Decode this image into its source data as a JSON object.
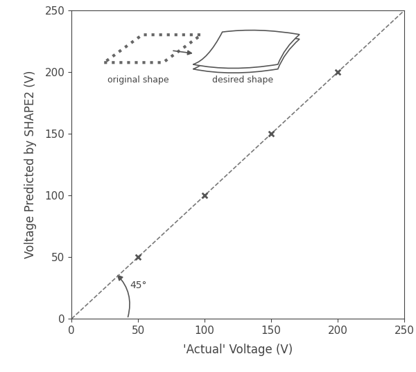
{
  "chart_data": {
    "type": "scatter",
    "x": [
      50,
      100,
      150,
      200
    ],
    "values": [
      50,
      100,
      150,
      200
    ],
    "color": "#555555",
    "marker": "x",
    "reference_line": {
      "x": [
        0,
        250
      ],
      "values": [
        0,
        250
      ],
      "line_style": "dashed",
      "color": "#777777"
    },
    "xlabel": "'Actual' Voltage (V)",
    "ylabel": "Voltage Predicted by SHAPE2 (V)",
    "xlim": [
      0,
      250
    ],
    "ylim": [
      0,
      250
    ],
    "xticks": [
      0,
      50,
      100,
      150,
      200,
      250
    ],
    "yticks": [
      0,
      50,
      100,
      150,
      200,
      250
    ],
    "grid": false,
    "annotations": {
      "angle": "45°",
      "original": "original shape",
      "desired": "desired shape"
    }
  }
}
